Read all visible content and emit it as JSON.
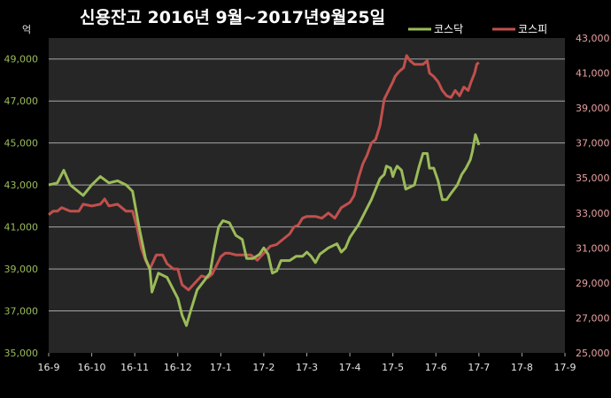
{
  "chart_data": {
    "type": "line",
    "title": "신용잔고 2016년 9월~2017년9월25일",
    "y_left_unit": "억",
    "y_left_lim": [
      35000,
      50000
    ],
    "y_left_ticks": [
      "35,000",
      "37,000",
      "39,000",
      "41,000",
      "43,000",
      "45,000",
      "47,000",
      "49,000"
    ],
    "y_right_lim": [
      25000,
      43000
    ],
    "y_right_ticks": [
      "25,000",
      "27,000",
      "29,000",
      "31,000",
      "33,000",
      "35,000",
      "37,000",
      "39,000",
      "41,000",
      "43,000"
    ],
    "x_ticks": [
      "16-9",
      "16-10",
      "16-11",
      "16-12",
      "17-1",
      "17-2",
      "17-3",
      "17-4",
      "17-5",
      "17-6",
      "17-7",
      "17-8",
      "17-9"
    ],
    "legend_position": "top-right",
    "grid": true,
    "colors": {
      "kosdaq": "#9bbb59",
      "kospi": "#c0504d",
      "background": "#262626"
    },
    "series": [
      {
        "name": "코스닥",
        "axis": "left",
        "points": [
          [
            0.0,
            43000
          ],
          [
            0.2,
            43100
          ],
          [
            0.35,
            43700
          ],
          [
            0.5,
            43000
          ],
          [
            0.8,
            42500
          ],
          [
            1.0,
            43000
          ],
          [
            1.2,
            43400
          ],
          [
            1.4,
            43100
          ],
          [
            1.6,
            43200
          ],
          [
            1.8,
            43000
          ],
          [
            1.95,
            42700
          ],
          [
            2.1,
            41000
          ],
          [
            2.25,
            39500
          ],
          [
            2.35,
            39000
          ],
          [
            2.4,
            37900
          ],
          [
            2.55,
            38800
          ],
          [
            2.75,
            38600
          ],
          [
            2.9,
            38000
          ],
          [
            3.0,
            37600
          ],
          [
            3.1,
            36800
          ],
          [
            3.2,
            36300
          ],
          [
            3.3,
            37000
          ],
          [
            3.45,
            38000
          ],
          [
            3.6,
            38400
          ],
          [
            3.75,
            38800
          ],
          [
            3.85,
            40000
          ],
          [
            3.95,
            41000
          ],
          [
            4.05,
            41300
          ],
          [
            4.2,
            41200
          ],
          [
            4.35,
            40600
          ],
          [
            4.5,
            40400
          ],
          [
            4.6,
            39500
          ],
          [
            4.75,
            39500
          ],
          [
            4.9,
            39700
          ],
          [
            5.0,
            40000
          ],
          [
            5.1,
            39700
          ],
          [
            5.2,
            38800
          ],
          [
            5.3,
            38900
          ],
          [
            5.4,
            39400
          ],
          [
            5.6,
            39400
          ],
          [
            5.75,
            39600
          ],
          [
            5.9,
            39600
          ],
          [
            6.0,
            39800
          ],
          [
            6.1,
            39600
          ],
          [
            6.2,
            39300
          ],
          [
            6.3,
            39700
          ],
          [
            6.5,
            40000
          ],
          [
            6.7,
            40200
          ],
          [
            6.8,
            39800
          ],
          [
            6.9,
            40000
          ],
          [
            7.0,
            40500
          ],
          [
            7.1,
            40800
          ],
          [
            7.2,
            41100
          ],
          [
            7.3,
            41500
          ],
          [
            7.4,
            41900
          ],
          [
            7.5,
            42300
          ],
          [
            7.6,
            42800
          ],
          [
            7.7,
            43300
          ],
          [
            7.8,
            43500
          ],
          [
            7.85,
            43900
          ],
          [
            7.95,
            43800
          ],
          [
            8.0,
            43400
          ],
          [
            8.05,
            43700
          ],
          [
            8.1,
            43900
          ],
          [
            8.2,
            43700
          ],
          [
            8.3,
            42800
          ],
          [
            8.4,
            42900
          ],
          [
            8.5,
            43000
          ],
          [
            8.6,
            43800
          ],
          [
            8.7,
            44500
          ],
          [
            8.8,
            44500
          ],
          [
            8.85,
            43800
          ],
          [
            8.95,
            43800
          ],
          [
            9.05,
            43200
          ],
          [
            9.15,
            42300
          ],
          [
            9.25,
            42300
          ],
          [
            9.35,
            42600
          ],
          [
            9.5,
            43000
          ],
          [
            9.6,
            43500
          ],
          [
            9.7,
            43800
          ],
          [
            9.8,
            44200
          ],
          [
            9.85,
            44600
          ],
          [
            9.92,
            45400
          ],
          [
            9.97,
            45100
          ],
          [
            10.0,
            44900
          ]
        ]
      },
      {
        "name": "코스피",
        "axis": "right",
        "points": [
          [
            0.0,
            32900
          ],
          [
            0.1,
            33100
          ],
          [
            0.2,
            33100
          ],
          [
            0.3,
            33300
          ],
          [
            0.5,
            33100
          ],
          [
            0.7,
            33100
          ],
          [
            0.8,
            33500
          ],
          [
            1.0,
            33400
          ],
          [
            1.2,
            33500
          ],
          [
            1.3,
            33800
          ],
          [
            1.4,
            33400
          ],
          [
            1.6,
            33500
          ],
          [
            1.8,
            33100
          ],
          [
            1.95,
            33100
          ],
          [
            2.05,
            32200
          ],
          [
            2.15,
            31000
          ],
          [
            2.25,
            30300
          ],
          [
            2.35,
            29800
          ],
          [
            2.5,
            30600
          ],
          [
            2.65,
            30600
          ],
          [
            2.75,
            30100
          ],
          [
            2.9,
            29800
          ],
          [
            3.0,
            29800
          ],
          [
            3.1,
            28900
          ],
          [
            3.25,
            28600
          ],
          [
            3.4,
            29000
          ],
          [
            3.55,
            29400
          ],
          [
            3.7,
            29300
          ],
          [
            3.8,
            29500
          ],
          [
            3.9,
            30000
          ],
          [
            4.0,
            30500
          ],
          [
            4.1,
            30700
          ],
          [
            4.2,
            30700
          ],
          [
            4.35,
            30600
          ],
          [
            4.5,
            30600
          ],
          [
            4.7,
            30600
          ],
          [
            4.85,
            30300
          ],
          [
            5.0,
            30700
          ],
          [
            5.15,
            31100
          ],
          [
            5.3,
            31200
          ],
          [
            5.45,
            31500
          ],
          [
            5.6,
            31800
          ],
          [
            5.7,
            32200
          ],
          [
            5.8,
            32300
          ],
          [
            5.9,
            32700
          ],
          [
            6.0,
            32800
          ],
          [
            6.2,
            32800
          ],
          [
            6.35,
            32700
          ],
          [
            6.5,
            33000
          ],
          [
            6.65,
            32700
          ],
          [
            6.8,
            33300
          ],
          [
            7.0,
            33600
          ],
          [
            7.1,
            34000
          ],
          [
            7.2,
            35000
          ],
          [
            7.3,
            35800
          ],
          [
            7.4,
            36300
          ],
          [
            7.5,
            37000
          ],
          [
            7.6,
            37200
          ],
          [
            7.7,
            38000
          ],
          [
            7.8,
            39500
          ],
          [
            7.9,
            40000
          ],
          [
            8.0,
            40500
          ],
          [
            8.05,
            40800
          ],
          [
            8.15,
            41100
          ],
          [
            8.25,
            41300
          ],
          [
            8.32,
            42000
          ],
          [
            8.4,
            41700
          ],
          [
            8.5,
            41500
          ],
          [
            8.6,
            41500
          ],
          [
            8.7,
            41500
          ],
          [
            8.8,
            41700
          ],
          [
            8.85,
            41000
          ],
          [
            8.95,
            40800
          ],
          [
            9.05,
            40500
          ],
          [
            9.15,
            40000
          ],
          [
            9.25,
            39700
          ],
          [
            9.35,
            39600
          ],
          [
            9.45,
            40000
          ],
          [
            9.55,
            39700
          ],
          [
            9.65,
            40200
          ],
          [
            9.75,
            40000
          ],
          [
            9.82,
            40500
          ],
          [
            9.9,
            41000
          ],
          [
            9.95,
            41500
          ],
          [
            10.0,
            41600
          ]
        ]
      }
    ]
  }
}
